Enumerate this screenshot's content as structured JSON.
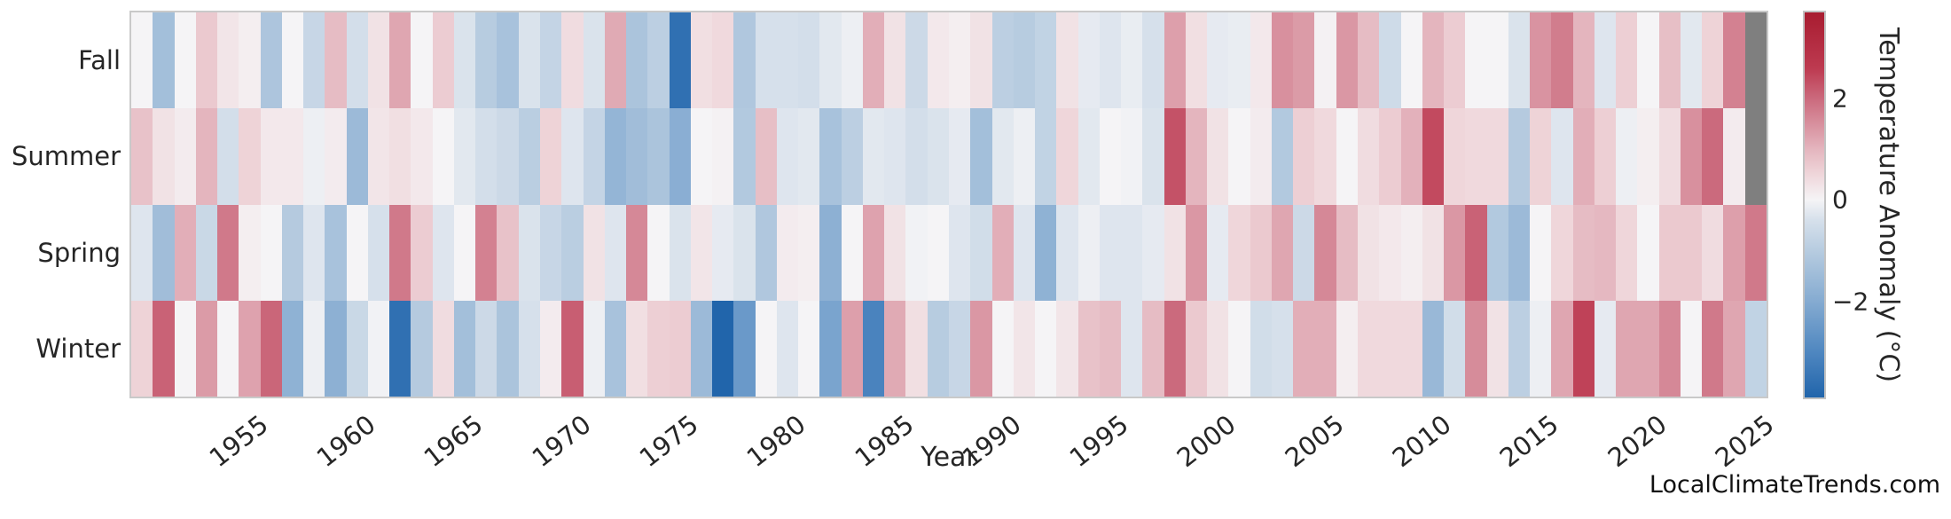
{
  "page": {
    "footer": "LocalClimateTrends.com"
  },
  "chart_data": {
    "type": "heatmap",
    "xlabel": "Year",
    "colorbar_label": "Temperature Anomaly (°C)",
    "rows": [
      "Fall",
      "Summer",
      "Spring",
      "Winter"
    ],
    "years": [
      1950,
      1951,
      1952,
      1953,
      1954,
      1955,
      1956,
      1957,
      1958,
      1959,
      1960,
      1961,
      1962,
      1963,
      1964,
      1965,
      1966,
      1967,
      1968,
      1969,
      1970,
      1971,
      1972,
      1973,
      1974,
      1975,
      1976,
      1977,
      1978,
      1979,
      1980,
      1981,
      1982,
      1983,
      1984,
      1985,
      1986,
      1987,
      1988,
      1989,
      1990,
      1991,
      1992,
      1993,
      1994,
      1995,
      1996,
      1997,
      1998,
      1999,
      2000,
      2001,
      2002,
      2003,
      2004,
      2005,
      2006,
      2007,
      2008,
      2009,
      2010,
      2011,
      2012,
      2013,
      2014,
      2015,
      2016,
      2017,
      2018,
      2019,
      2020,
      2021,
      2022,
      2023,
      2024,
      2025
    ],
    "x_ticks": [
      1955,
      1960,
      1965,
      1970,
      1975,
      1980,
      1985,
      1990,
      1995,
      2000,
      2005,
      2010,
      2015,
      2020,
      2025
    ],
    "series": [
      {
        "name": "Fall",
        "values": [
          0.0,
          -1.4,
          0.0,
          0.7,
          0.25,
          0.1,
          -1.2,
          0.0,
          -0.7,
          0.9,
          -0.45,
          0.3,
          1.2,
          0.0,
          0.65,
          -0.35,
          -1.0,
          -1.3,
          -0.35,
          -0.75,
          0.4,
          -0.35,
          1.15,
          -1.25,
          -0.9,
          -3.6,
          0.35,
          0.45,
          -1.15,
          -0.4,
          -0.4,
          -0.45,
          -0.25,
          -0.1,
          1.1,
          0.3,
          -0.6,
          0.2,
          0.1,
          0.3,
          -0.9,
          -1.0,
          -0.8,
          0.3,
          -0.2,
          -0.3,
          -0.15,
          -0.4,
          1.3,
          0.35,
          -0.2,
          -0.15,
          0.2,
          1.5,
          1.35,
          0.05,
          1.4,
          0.9,
          -0.55,
          0.0,
          1.0,
          0.65,
          0.0,
          0.0,
          -0.35,
          1.45,
          1.75,
          1.0,
          -0.3,
          0.6,
          0.0,
          0.85,
          -0.25,
          0.55,
          1.7,
          null
        ]
      },
      {
        "name": "Summer",
        "values": [
          0.8,
          0.3,
          0.15,
          1.0,
          -0.45,
          0.55,
          0.2,
          0.2,
          -0.1,
          0.15,
          -1.55,
          0.25,
          0.35,
          0.2,
          0.0,
          -0.25,
          -0.45,
          -0.6,
          -0.95,
          0.55,
          -0.3,
          -0.75,
          -1.7,
          -1.45,
          -1.25,
          -1.9,
          0.0,
          0.05,
          -1.1,
          0.85,
          -0.3,
          -0.25,
          -1.3,
          -0.9,
          -0.25,
          -0.3,
          -0.45,
          -0.35,
          -0.2,
          -1.4,
          -0.25,
          -0.1,
          -0.8,
          0.5,
          -0.25,
          0.0,
          -0.05,
          -0.35,
          2.3,
          1.0,
          0.3,
          0.0,
          0.15,
          -1.1,
          0.6,
          0.45,
          0.0,
          0.4,
          0.65,
          1.05,
          2.4,
          0.5,
          0.45,
          0.45,
          -1.05,
          0.55,
          -0.3,
          1.1,
          0.6,
          -0.1,
          0.1,
          0.4,
          1.5,
          2.0,
          0.15,
          null
        ]
      },
      {
        "name": "Spring",
        "values": [
          -0.3,
          -1.45,
          1.1,
          -0.65,
          1.8,
          0.1,
          0.0,
          -1.05,
          -0.3,
          -1.3,
          0.0,
          -0.4,
          1.8,
          0.65,
          -0.3,
          0.0,
          1.7,
          0.8,
          -0.35,
          -0.7,
          -0.95,
          0.3,
          -0.3,
          1.6,
          0.0,
          -0.35,
          0.25,
          -0.2,
          -0.35,
          -1.15,
          0.15,
          0.1,
          -1.85,
          0.0,
          1.25,
          0.3,
          -0.05,
          0.0,
          -0.3,
          -0.5,
          1.1,
          -0.3,
          -1.8,
          -0.3,
          -0.1,
          -0.3,
          -0.3,
          -0.2,
          0.3,
          1.4,
          -0.2,
          0.5,
          0.7,
          1.2,
          -0.6,
          1.6,
          0.9,
          0.3,
          0.2,
          0.1,
          0.3,
          1.4,
          2.1,
          -1.1,
          -1.55,
          0.0,
          0.5,
          0.9,
          0.95,
          0.5,
          0.0,
          0.7,
          0.7,
          0.4,
          1.3,
          1.8
        ]
      },
      {
        "name": "Winter",
        "values": [
          0.55,
          2.1,
          0.0,
          1.35,
          0.0,
          1.25,
          2.05,
          -1.8,
          -0.1,
          -1.85,
          -0.65,
          -0.05,
          -3.6,
          -1.05,
          0.4,
          -1.4,
          -0.6,
          -1.25,
          -0.4,
          0.15,
          2.15,
          -0.1,
          -1.3,
          0.35,
          0.6,
          0.65,
          -1.55,
          -3.9,
          -2.5,
          0.0,
          -0.3,
          0.0,
          -2.2,
          1.3,
          -3.1,
          1.15,
          0.35,
          -1.0,
          -0.7,
          1.4,
          0.0,
          0.25,
          0.0,
          0.25,
          0.8,
          0.9,
          -0.3,
          0.9,
          2.0,
          0.7,
          0.3,
          0.0,
          -0.5,
          -0.4,
          1.1,
          1.1,
          0.1,
          0.45,
          0.45,
          0.45,
          -1.6,
          -0.5,
          1.55,
          0.3,
          -0.9,
          -0.1,
          1.2,
          2.5,
          -0.2,
          1.2,
          1.2,
          1.6,
          0.0,
          1.8,
          1.2,
          -0.8
        ]
      }
    ],
    "colorbar_ticks": [
      {
        "label": "2",
        "value": 2
      },
      {
        "label": "0",
        "value": 0
      },
      {
        "label": "−2",
        "value": -2
      }
    ],
    "vmin": -3.9,
    "vmax": 3.7,
    "missing_color": "#7f7f7f",
    "color_scale": [
      [
        -3.9,
        "#2165ab"
      ],
      [
        -3.0,
        "#4f87c0"
      ],
      [
        -2.0,
        "#85abd1"
      ],
      [
        -1.0,
        "#b7cce0"
      ],
      [
        -0.4,
        "#d6e0eb"
      ],
      [
        0.0,
        "#f5f4f6"
      ],
      [
        0.5,
        "#efd6da"
      ],
      [
        1.0,
        "#e4b5be"
      ],
      [
        2.0,
        "#cb6a7d"
      ],
      [
        2.6,
        "#bd3a50"
      ],
      [
        3.7,
        "#a81c30"
      ]
    ],
    "legend_position": "right",
    "grid": false
  }
}
